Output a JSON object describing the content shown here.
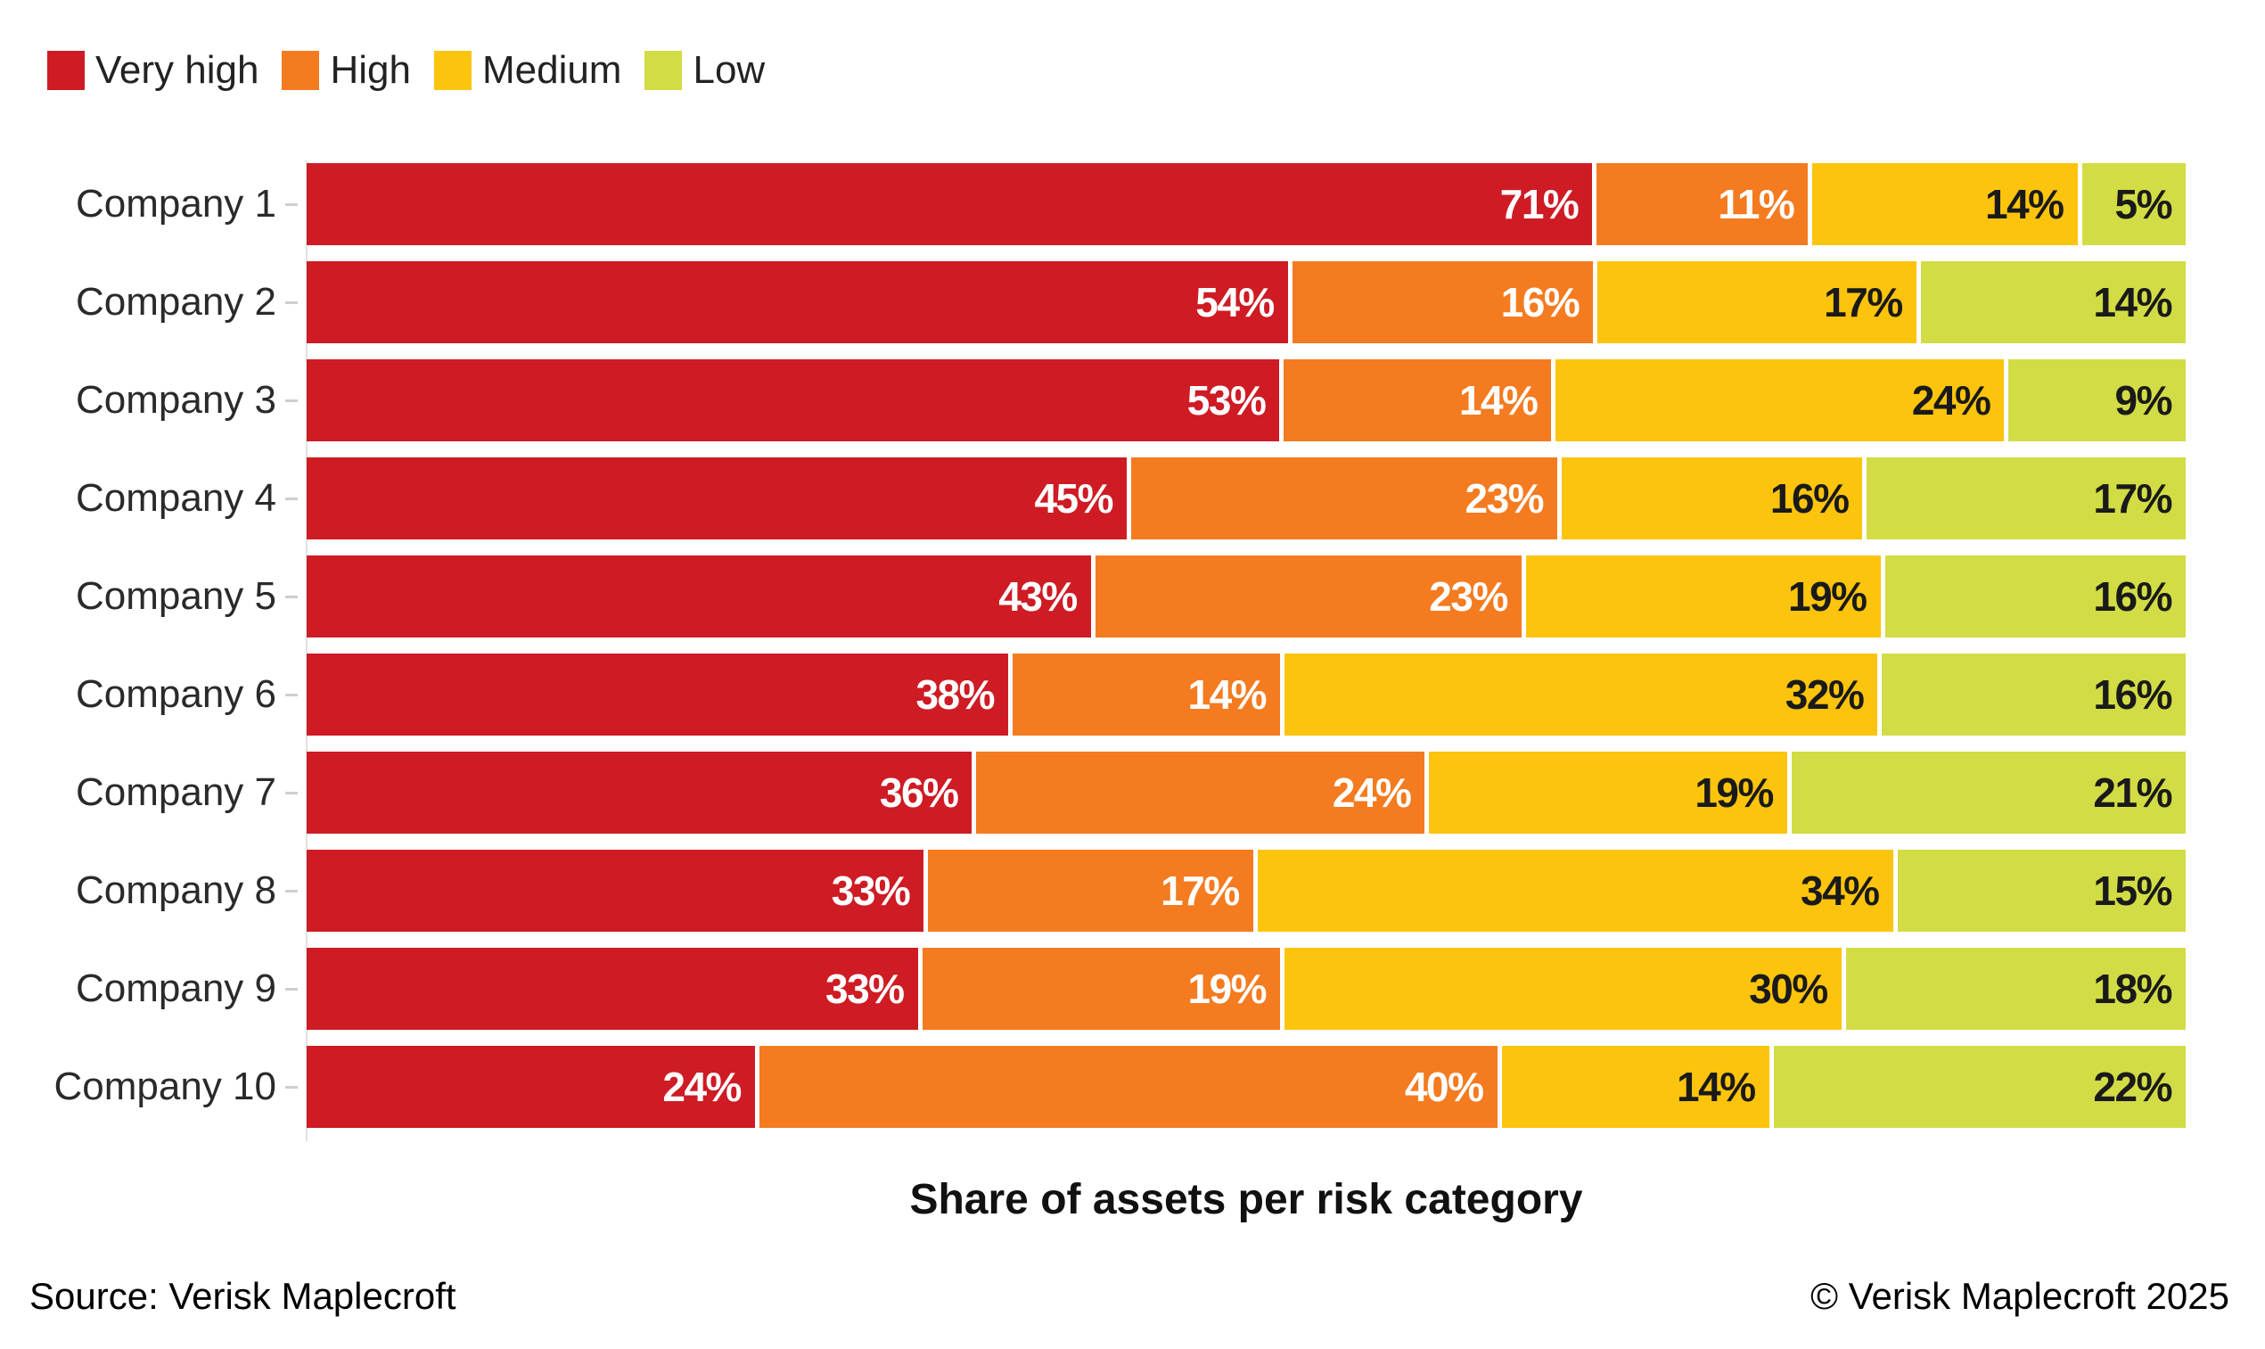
{
  "chart_data": {
    "type": "bar",
    "stacked": true,
    "orientation": "horizontal",
    "normalized_to_100_percent": true,
    "title": "",
    "xlabel": "Share of assets per risk category",
    "ylabel": "",
    "value_suffix": "%",
    "legend_position": "top-left",
    "grid": false,
    "categories": [
      "Company 1",
      "Company 2",
      "Company 3",
      "Company 4",
      "Company 5",
      "Company 6",
      "Company 7",
      "Company 8",
      "Company 9",
      "Company 10"
    ],
    "series": [
      {
        "name": "Very high",
        "color": "#CE1B24",
        "label_color": "#FFFFFF",
        "values": [
          71,
          54,
          53,
          45,
          43,
          38,
          36,
          33,
          33,
          24
        ]
      },
      {
        "name": "High",
        "color": "#F47B20",
        "label_color": "#FFFFFF",
        "values": [
          11,
          16,
          14,
          23,
          23,
          14,
          24,
          17,
          19,
          40
        ]
      },
      {
        "name": "Medium",
        "color": "#FDC40D",
        "label_color": "#1A1A1A",
        "values": [
          14,
          17,
          24,
          16,
          19,
          32,
          19,
          34,
          30,
          14
        ]
      },
      {
        "name": "Low",
        "color": "#D2DC45",
        "label_color": "#1A1A1A",
        "values": [
          5,
          14,
          9,
          17,
          16,
          16,
          21,
          15,
          18,
          22
        ]
      }
    ]
  },
  "footer": {
    "source": "Source: Verisk Maplecroft",
    "copyright": "© Verisk Maplecroft 2025"
  }
}
